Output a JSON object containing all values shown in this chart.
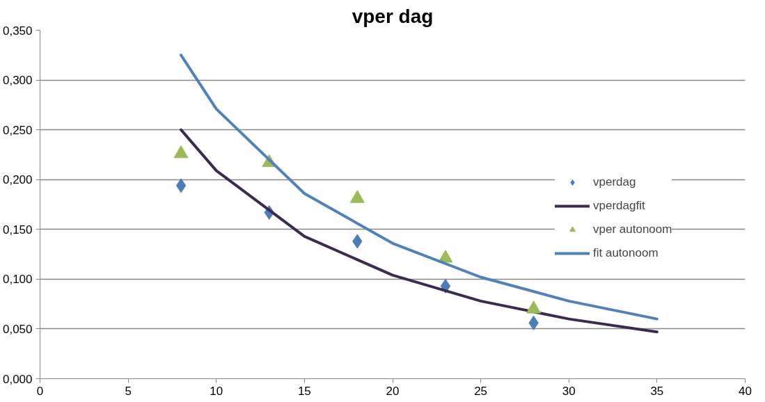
{
  "chart_data": {
    "type": "scatter",
    "title": "vper dag",
    "xlim": [
      0,
      40
    ],
    "xticks": [
      0,
      5,
      10,
      15,
      20,
      25,
      30,
      35,
      40
    ],
    "ylim": [
      0,
      0.35
    ],
    "yticks": [
      {
        "value": 0,
        "label": "0,000"
      },
      {
        "value": 0.05,
        "label": "0,050"
      },
      {
        "value": 0.1,
        "label": "0,100"
      },
      {
        "value": 0.15,
        "label": "0,150"
      },
      {
        "value": 0.2,
        "label": "0,200"
      },
      {
        "value": 0.25,
        "label": "0,250"
      },
      {
        "value": 0.3,
        "label": "0,300"
      },
      {
        "value": 0.35,
        "label": "0,350"
      }
    ],
    "grid": "y",
    "legend": "right",
    "series": [
      {
        "name": "vperdag",
        "marker": "diamond",
        "color": "#4a7ebb",
        "x": [
          8,
          13,
          18,
          23,
          28
        ],
        "values": [
          0.194,
          0.167,
          0.138,
          0.093,
          0.056
        ]
      },
      {
        "name": "vperdagfit",
        "type": "line",
        "line_style": "solid",
        "color": "#3b2c4f",
        "x": [
          8,
          10,
          15,
          20,
          25,
          30,
          35
        ],
        "values": [
          0.25,
          0.209,
          0.143,
          0.104,
          0.078,
          0.06,
          0.047
        ]
      },
      {
        "name": "vper autonoom",
        "marker": "triangle",
        "color": "#9bbb59",
        "x": [
          8,
          13,
          18,
          23,
          28
        ],
        "values": [
          0.226,
          0.217,
          0.181,
          0.121,
          0.07
        ]
      },
      {
        "name": "fit autonoom",
        "type": "line",
        "line_style": "solid",
        "color": "#4f81bd",
        "x": [
          8,
          10,
          15,
          20,
          25,
          30,
          35
        ],
        "values": [
          0.325,
          0.271,
          0.186,
          0.136,
          0.102,
          0.078,
          0.06
        ]
      }
    ]
  }
}
